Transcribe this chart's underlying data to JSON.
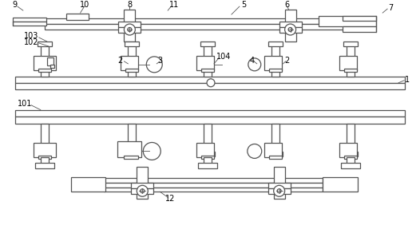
{
  "bg_color": "#ffffff",
  "line_color": "#555555",
  "lw": 0.9,
  "tlw": 0.6,
  "fig_width": 5.26,
  "fig_height": 3.07,
  "dpi": 100
}
